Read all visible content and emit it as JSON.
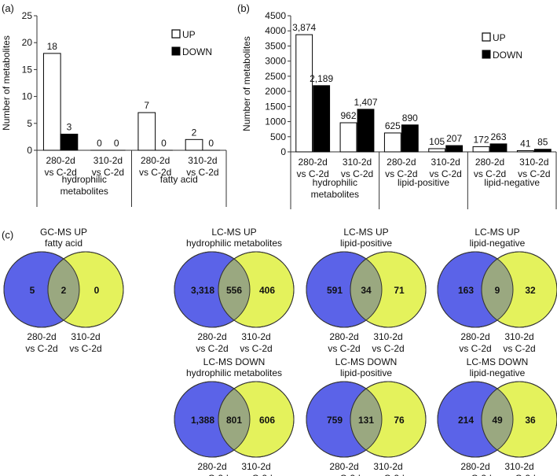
{
  "chart_data": [
    {
      "panel": "(a)",
      "type": "bar",
      "ylabel": "Number of metabolites",
      "ylim": [
        0,
        25
      ],
      "yticks": [
        0,
        5,
        10,
        15,
        20,
        25
      ],
      "legend": [
        "UP",
        "DOWN"
      ],
      "legend_position": "top-right",
      "categories": [
        "280-2d\nvs C-2d",
        "310-2d\nvs C-2d",
        "280-2d\nvs C-2d",
        "310-2d\nvs C-2d"
      ],
      "groups": [
        "hydrophilic\nmetabolites",
        "fatty acid"
      ],
      "series": [
        {
          "name": "UP",
          "values": [
            18,
            0,
            7,
            2
          ],
          "labels": [
            "18",
            "0",
            "7",
            "2"
          ]
        },
        {
          "name": "DOWN",
          "values": [
            3,
            0,
            0,
            0
          ],
          "labels": [
            "3",
            "0",
            "0",
            "0"
          ]
        }
      ]
    },
    {
      "panel": "(b)",
      "type": "bar",
      "ylabel": "Number of metabolites",
      "ylim": [
        0,
        4500
      ],
      "yticks": [
        0,
        500,
        1000,
        1500,
        2000,
        2500,
        3000,
        3500,
        4000,
        4500
      ],
      "legend": [
        "UP",
        "DOWN"
      ],
      "legend_position": "top-right",
      "categories": [
        "280-2d\nvs C-2d",
        "310-2d\nvs C-2d",
        "280-2d\nvs C-2d",
        "310-2d\nvs C-2d",
        "280-2d\nvs C-2d",
        "310-2d\nvs C-2d"
      ],
      "groups": [
        "hydrophilic\nmetabolites",
        "lipid-positive",
        "lipid-negative"
      ],
      "series": [
        {
          "name": "UP",
          "values": [
            3874,
            962,
            625,
            105,
            172,
            41
          ],
          "labels": [
            "3,874",
            "962",
            "625",
            "105",
            "172",
            "41"
          ]
        },
        {
          "name": "DOWN",
          "values": [
            2189,
            1407,
            890,
            207,
            263,
            85
          ],
          "labels": [
            "2,189",
            "1,407",
            "890",
            "207",
            "263",
            "85"
          ]
        }
      ]
    },
    {
      "panel": "(c)",
      "type": "venn",
      "left_label": "280-2d\nvs C-2d",
      "right_label": "310-2d\nvs C-2d",
      "colors": {
        "left": "#5b63e8",
        "right": "#e4f25c",
        "overlap": "#9aa880"
      },
      "diagrams": [
        {
          "title": "GC-MS UP\nfatty acid",
          "left": "5",
          "both": "2",
          "right": "0"
        },
        {
          "title": "LC-MS UP\nhydrophilic metabolites",
          "left": "3,318",
          "both": "556",
          "right": "406"
        },
        {
          "title": "LC-MS UP\nlipid-positive",
          "left": "591",
          "both": "34",
          "right": "71"
        },
        {
          "title": "LC-MS UP\nlipid-negative",
          "left": "163",
          "both": "9",
          "right": "32"
        },
        {
          "title": "LC-MS DOWN\nhydrophilic metabolites",
          "left": "1,388",
          "both": "801",
          "right": "606"
        },
        {
          "title": "LC-MS DOWN\nlipid-positive",
          "left": "759",
          "both": "131",
          "right": "76"
        },
        {
          "title": "LC-MS DOWN\nlipid-negative",
          "left": "214",
          "both": "49",
          "right": "36"
        }
      ]
    }
  ]
}
